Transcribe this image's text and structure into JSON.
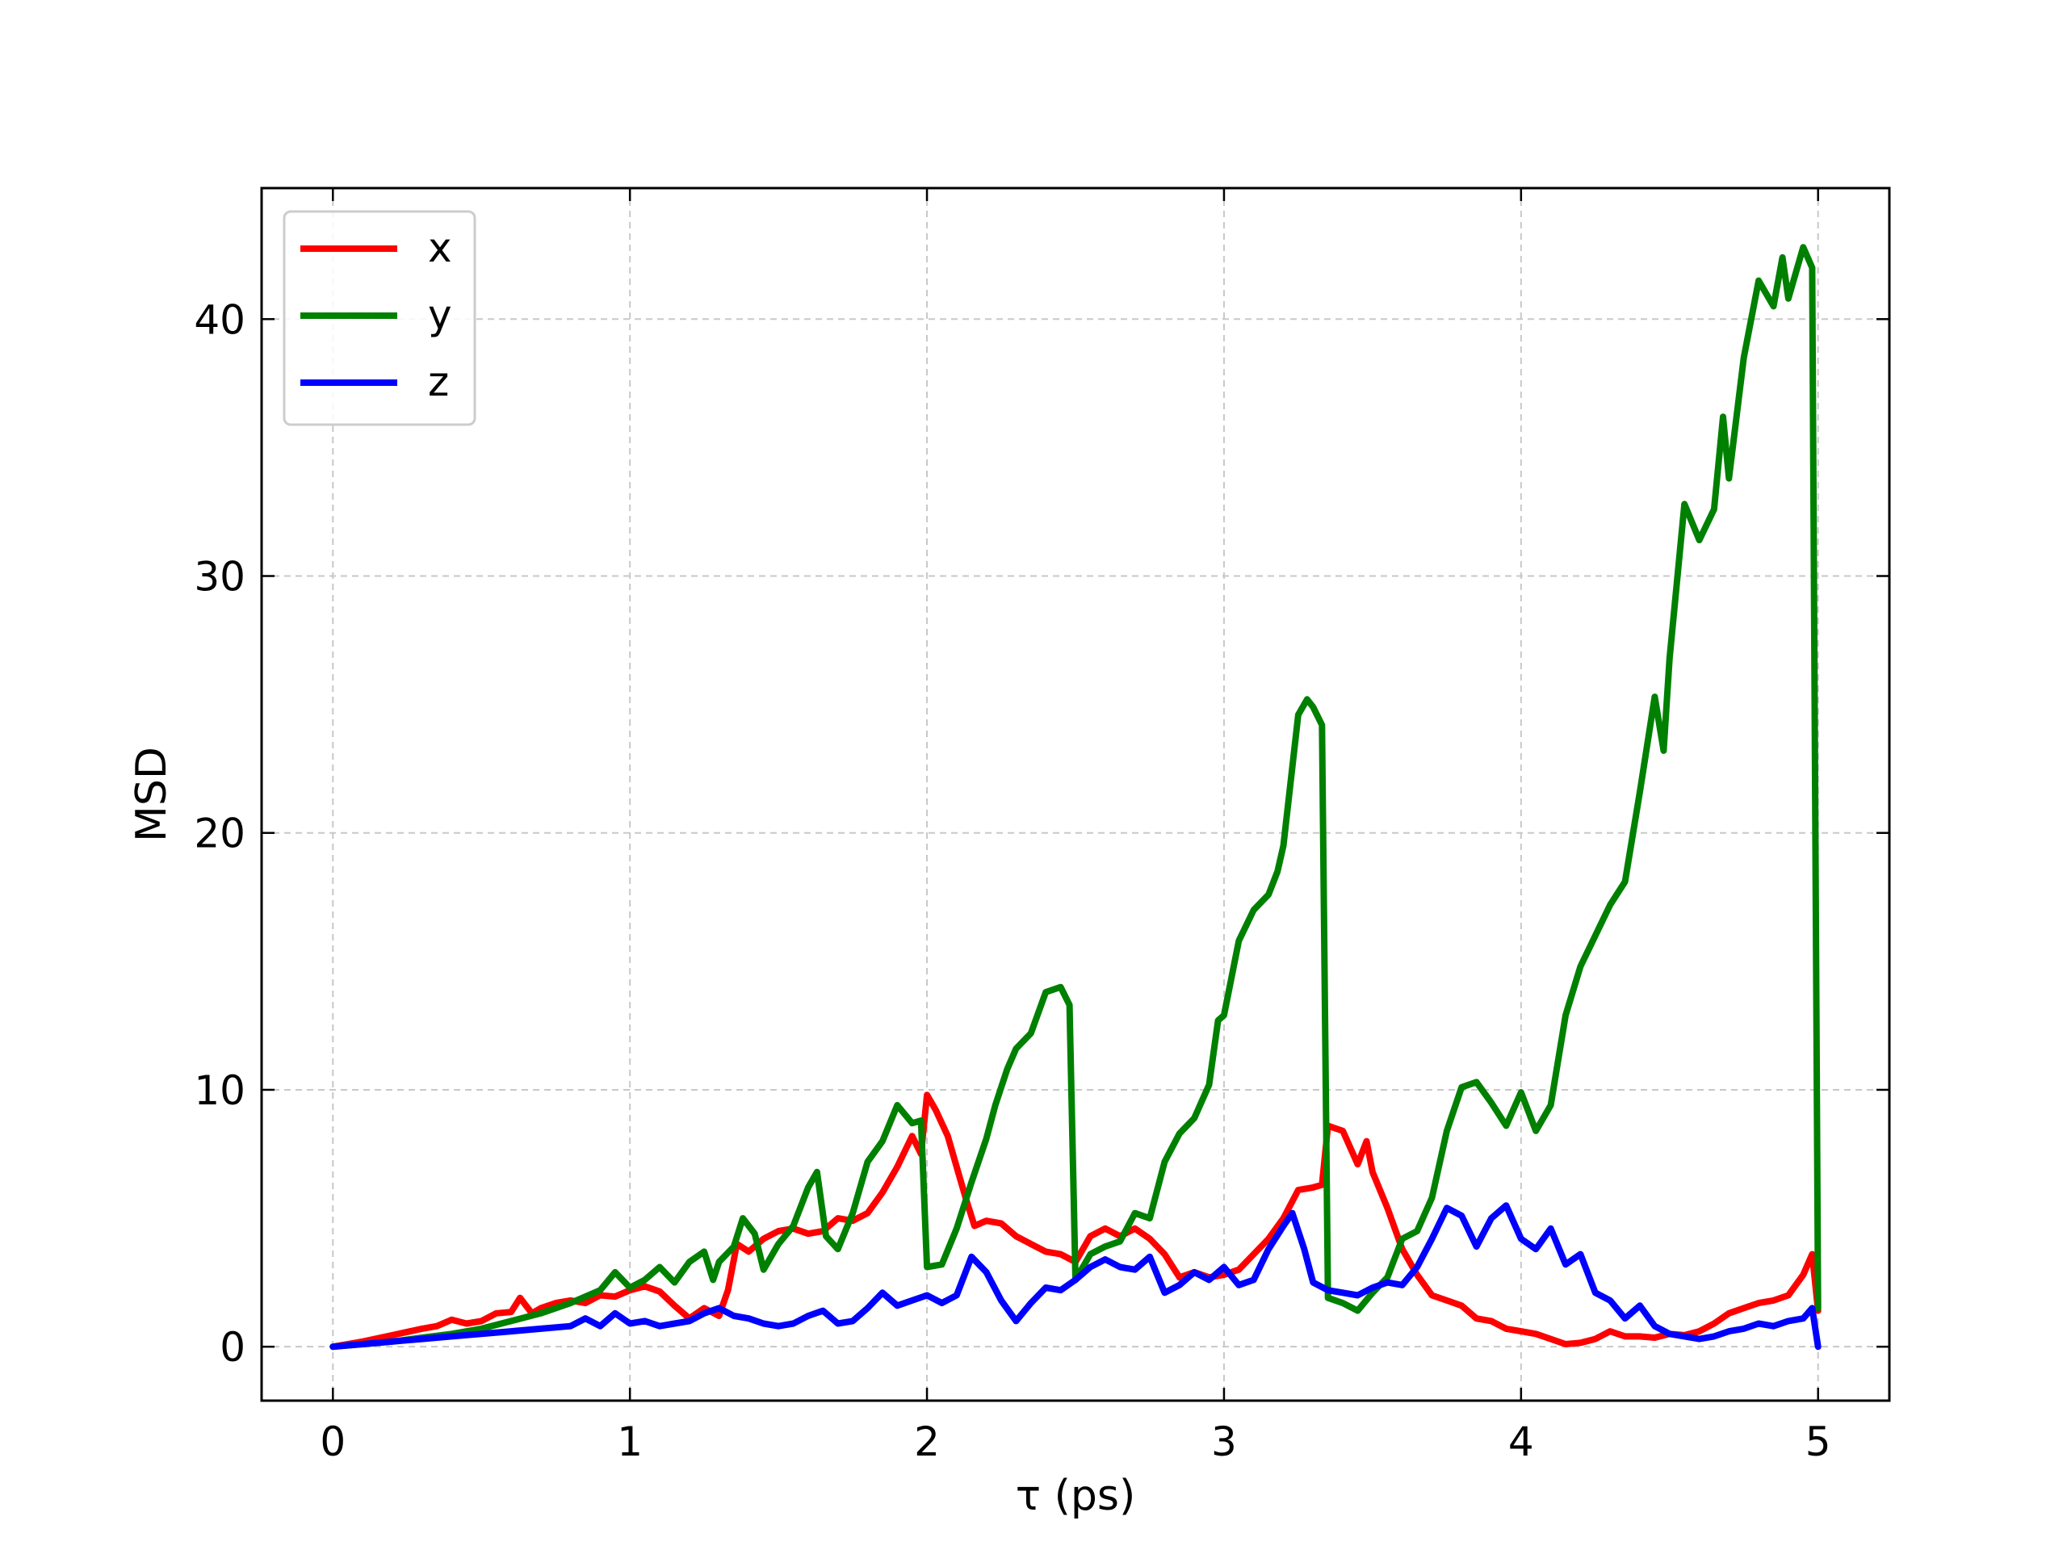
{
  "chart_data": {
    "type": "line",
    "title": "",
    "xlabel": "τ (ps)",
    "ylabel": "MSD",
    "xlim": [
      -0.24,
      5.24
    ],
    "ylim": [
      -2.1,
      45.1
    ],
    "xticks": [
      0,
      1,
      2,
      3,
      4,
      5
    ],
    "yticks": [
      0,
      10,
      20,
      30,
      40
    ],
    "grid": true,
    "legend_position": "top-left",
    "series": [
      {
        "name": "x",
        "color": "#ff0000",
        "points": [
          [
            0,
            0
          ],
          [
            0.1,
            0.2
          ],
          [
            0.2,
            0.45
          ],
          [
            0.3,
            0.7
          ],
          [
            0.35,
            0.8
          ],
          [
            0.4,
            1.05
          ],
          [
            0.45,
            0.9
          ],
          [
            0.5,
            1.0
          ],
          [
            0.55,
            1.3
          ],
          [
            0.6,
            1.35
          ],
          [
            0.63,
            1.9
          ],
          [
            0.67,
            1.3
          ],
          [
            0.7,
            1.5
          ],
          [
            0.75,
            1.7
          ],
          [
            0.8,
            1.8
          ],
          [
            0.85,
            1.7
          ],
          [
            0.9,
            2.0
          ],
          [
            0.95,
            1.95
          ],
          [
            1.0,
            2.2
          ],
          [
            1.05,
            2.35
          ],
          [
            1.1,
            2.15
          ],
          [
            1.15,
            1.6
          ],
          [
            1.2,
            1.1
          ],
          [
            1.25,
            1.5
          ],
          [
            1.3,
            1.2
          ],
          [
            1.33,
            2.2
          ],
          [
            1.36,
            4.0
          ],
          [
            1.4,
            3.7
          ],
          [
            1.45,
            4.2
          ],
          [
            1.5,
            4.5
          ],
          [
            1.55,
            4.6
          ],
          [
            1.6,
            4.4
          ],
          [
            1.65,
            4.5
          ],
          [
            1.7,
            5.0
          ],
          [
            1.75,
            4.9
          ],
          [
            1.8,
            5.2
          ],
          [
            1.85,
            6.0
          ],
          [
            1.9,
            7.0
          ],
          [
            1.95,
            8.2
          ],
          [
            1.98,
            7.5
          ],
          [
            2.0,
            9.8
          ],
          [
            2.03,
            9.2
          ],
          [
            2.07,
            8.2
          ],
          [
            2.1,
            7.0
          ],
          [
            2.13,
            5.8
          ],
          [
            2.16,
            4.7
          ],
          [
            2.2,
            4.9
          ],
          [
            2.25,
            4.8
          ],
          [
            2.3,
            4.3
          ],
          [
            2.35,
            4.0
          ],
          [
            2.4,
            3.7
          ],
          [
            2.45,
            3.6
          ],
          [
            2.5,
            3.3
          ],
          [
            2.55,
            4.3
          ],
          [
            2.6,
            4.6
          ],
          [
            2.65,
            4.3
          ],
          [
            2.7,
            4.6
          ],
          [
            2.75,
            4.2
          ],
          [
            2.8,
            3.6
          ],
          [
            2.85,
            2.7
          ],
          [
            2.9,
            2.9
          ],
          [
            2.95,
            2.7
          ],
          [
            3.0,
            2.8
          ],
          [
            3.05,
            3.0
          ],
          [
            3.1,
            3.6
          ],
          [
            3.15,
            4.2
          ],
          [
            3.2,
            5.0
          ],
          [
            3.25,
            6.1
          ],
          [
            3.3,
            6.2
          ],
          [
            3.33,
            6.3
          ],
          [
            3.35,
            8.6
          ],
          [
            3.4,
            8.4
          ],
          [
            3.45,
            7.1
          ],
          [
            3.48,
            8.0
          ],
          [
            3.5,
            6.8
          ],
          [
            3.55,
            5.4
          ],
          [
            3.6,
            3.8
          ],
          [
            3.65,
            2.8
          ],
          [
            3.7,
            2.0
          ],
          [
            3.75,
            1.8
          ],
          [
            3.8,
            1.6
          ],
          [
            3.85,
            1.1
          ],
          [
            3.9,
            1.0
          ],
          [
            3.95,
            0.7
          ],
          [
            4.0,
            0.6
          ],
          [
            4.05,
            0.5
          ],
          [
            4.1,
            0.3
          ],
          [
            4.15,
            0.1
          ],
          [
            4.2,
            0.15
          ],
          [
            4.25,
            0.3
          ],
          [
            4.3,
            0.6
          ],
          [
            4.35,
            0.4
          ],
          [
            4.4,
            0.4
          ],
          [
            4.45,
            0.35
          ],
          [
            4.5,
            0.5
          ],
          [
            4.55,
            0.45
          ],
          [
            4.6,
            0.6
          ],
          [
            4.65,
            0.9
          ],
          [
            4.7,
            1.3
          ],
          [
            4.75,
            1.5
          ],
          [
            4.8,
            1.7
          ],
          [
            4.85,
            1.8
          ],
          [
            4.9,
            2.0
          ],
          [
            4.95,
            2.8
          ],
          [
            4.98,
            3.6
          ],
          [
            5.0,
            1.4
          ]
        ]
      },
      {
        "name": "y",
        "color": "#008000",
        "points": [
          [
            0,
            0
          ],
          [
            0.1,
            0.1
          ],
          [
            0.2,
            0.2
          ],
          [
            0.3,
            0.35
          ],
          [
            0.4,
            0.5
          ],
          [
            0.5,
            0.7
          ],
          [
            0.6,
            1.0
          ],
          [
            0.7,
            1.3
          ],
          [
            0.8,
            1.7
          ],
          [
            0.9,
            2.2
          ],
          [
            0.95,
            2.9
          ],
          [
            1.0,
            2.3
          ],
          [
            1.05,
            2.6
          ],
          [
            1.1,
            3.1
          ],
          [
            1.15,
            2.5
          ],
          [
            1.2,
            3.3
          ],
          [
            1.25,
            3.7
          ],
          [
            1.28,
            2.6
          ],
          [
            1.3,
            3.3
          ],
          [
            1.35,
            3.9
          ],
          [
            1.38,
            5.0
          ],
          [
            1.42,
            4.4
          ],
          [
            1.45,
            3.0
          ],
          [
            1.5,
            4.0
          ],
          [
            1.55,
            4.7
          ],
          [
            1.6,
            6.2
          ],
          [
            1.63,
            6.8
          ],
          [
            1.66,
            4.3
          ],
          [
            1.7,
            3.8
          ],
          [
            1.75,
            5.2
          ],
          [
            1.8,
            7.2
          ],
          [
            1.85,
            8.0
          ],
          [
            1.9,
            9.4
          ],
          [
            1.95,
            8.7
          ],
          [
            1.98,
            8.8
          ],
          [
            2.0,
            3.1
          ],
          [
            2.05,
            3.2
          ],
          [
            2.1,
            4.6
          ],
          [
            2.15,
            6.4
          ],
          [
            2.2,
            8.1
          ],
          [
            2.23,
            9.4
          ],
          [
            2.27,
            10.8
          ],
          [
            2.3,
            11.6
          ],
          [
            2.35,
            12.2
          ],
          [
            2.4,
            13.8
          ],
          [
            2.45,
            14.0
          ],
          [
            2.48,
            13.3
          ],
          [
            2.5,
            2.6
          ],
          [
            2.55,
            3.6
          ],
          [
            2.6,
            3.9
          ],
          [
            2.65,
            4.1
          ],
          [
            2.7,
            5.2
          ],
          [
            2.75,
            5.0
          ],
          [
            2.8,
            7.2
          ],
          [
            2.85,
            8.3
          ],
          [
            2.9,
            8.9
          ],
          [
            2.95,
            10.2
          ],
          [
            2.98,
            12.7
          ],
          [
            3.0,
            12.9
          ],
          [
            3.05,
            15.8
          ],
          [
            3.1,
            17.0
          ],
          [
            3.15,
            17.6
          ],
          [
            3.18,
            18.5
          ],
          [
            3.2,
            19.5
          ],
          [
            3.25,
            24.6
          ],
          [
            3.28,
            25.2
          ],
          [
            3.3,
            24.9
          ],
          [
            3.33,
            24.2
          ],
          [
            3.35,
            1.9
          ],
          [
            3.4,
            1.7
          ],
          [
            3.45,
            1.4
          ],
          [
            3.5,
            2.1
          ],
          [
            3.55,
            2.7
          ],
          [
            3.6,
            4.2
          ],
          [
            3.65,
            4.5
          ],
          [
            3.7,
            5.8
          ],
          [
            3.75,
            8.4
          ],
          [
            3.8,
            10.1
          ],
          [
            3.85,
            10.3
          ],
          [
            3.9,
            9.5
          ],
          [
            3.95,
            8.6
          ],
          [
            4.0,
            9.9
          ],
          [
            4.05,
            8.4
          ],
          [
            4.1,
            9.4
          ],
          [
            4.15,
            12.9
          ],
          [
            4.2,
            14.8
          ],
          [
            4.25,
            16.0
          ],
          [
            4.3,
            17.2
          ],
          [
            4.35,
            18.1
          ],
          [
            4.4,
            21.6
          ],
          [
            4.45,
            25.3
          ],
          [
            4.48,
            23.2
          ],
          [
            4.5,
            26.8
          ],
          [
            4.55,
            32.8
          ],
          [
            4.6,
            31.4
          ],
          [
            4.65,
            32.6
          ],
          [
            4.68,
            36.2
          ],
          [
            4.7,
            33.8
          ],
          [
            4.75,
            38.5
          ],
          [
            4.8,
            41.5
          ],
          [
            4.85,
            40.5
          ],
          [
            4.88,
            42.4
          ],
          [
            4.9,
            40.8
          ],
          [
            4.95,
            42.8
          ],
          [
            4.98,
            42.0
          ],
          [
            5.0,
            1.5
          ]
        ]
      },
      {
        "name": "z",
        "color": "#0000ff",
        "points": [
          [
            0,
            0
          ],
          [
            0.1,
            0.1
          ],
          [
            0.2,
            0.2
          ],
          [
            0.3,
            0.3
          ],
          [
            0.4,
            0.4
          ],
          [
            0.5,
            0.5
          ],
          [
            0.6,
            0.6
          ],
          [
            0.7,
            0.7
          ],
          [
            0.8,
            0.8
          ],
          [
            0.85,
            1.1
          ],
          [
            0.9,
            0.8
          ],
          [
            0.95,
            1.3
          ],
          [
            1.0,
            0.9
          ],
          [
            1.05,
            1.0
          ],
          [
            1.1,
            0.8
          ],
          [
            1.15,
            0.9
          ],
          [
            1.2,
            1.0
          ],
          [
            1.25,
            1.3
          ],
          [
            1.3,
            1.5
          ],
          [
            1.35,
            1.2
          ],
          [
            1.4,
            1.1
          ],
          [
            1.45,
            0.9
          ],
          [
            1.5,
            0.8
          ],
          [
            1.55,
            0.9
          ],
          [
            1.6,
            1.2
          ],
          [
            1.65,
            1.4
          ],
          [
            1.7,
            0.9
          ],
          [
            1.75,
            1.0
          ],
          [
            1.8,
            1.5
          ],
          [
            1.85,
            2.1
          ],
          [
            1.9,
            1.6
          ],
          [
            1.95,
            1.8
          ],
          [
            2.0,
            2.0
          ],
          [
            2.05,
            1.7
          ],
          [
            2.1,
            2.0
          ],
          [
            2.15,
            3.5
          ],
          [
            2.2,
            2.9
          ],
          [
            2.25,
            1.8
          ],
          [
            2.3,
            1.0
          ],
          [
            2.35,
            1.7
          ],
          [
            2.4,
            2.3
          ],
          [
            2.45,
            2.2
          ],
          [
            2.5,
            2.6
          ],
          [
            2.55,
            3.1
          ],
          [
            2.6,
            3.4
          ],
          [
            2.65,
            3.1
          ],
          [
            2.7,
            3.0
          ],
          [
            2.75,
            3.5
          ],
          [
            2.8,
            2.1
          ],
          [
            2.85,
            2.4
          ],
          [
            2.9,
            2.9
          ],
          [
            2.95,
            2.6
          ],
          [
            3.0,
            3.1
          ],
          [
            3.05,
            2.4
          ],
          [
            3.1,
            2.6
          ],
          [
            3.15,
            3.8
          ],
          [
            3.2,
            4.7
          ],
          [
            3.23,
            5.2
          ],
          [
            3.27,
            3.8
          ],
          [
            3.3,
            2.5
          ],
          [
            3.35,
            2.2
          ],
          [
            3.4,
            2.1
          ],
          [
            3.45,
            2.0
          ],
          [
            3.5,
            2.3
          ],
          [
            3.55,
            2.5
          ],
          [
            3.6,
            2.4
          ],
          [
            3.65,
            3.1
          ],
          [
            3.7,
            4.2
          ],
          [
            3.75,
            5.4
          ],
          [
            3.8,
            5.1
          ],
          [
            3.85,
            3.9
          ],
          [
            3.9,
            5.0
          ],
          [
            3.95,
            5.5
          ],
          [
            4.0,
            4.2
          ],
          [
            4.05,
            3.8
          ],
          [
            4.1,
            4.6
          ],
          [
            4.15,
            3.2
          ],
          [
            4.2,
            3.6
          ],
          [
            4.25,
            2.1
          ],
          [
            4.3,
            1.8
          ],
          [
            4.35,
            1.1
          ],
          [
            4.4,
            1.6
          ],
          [
            4.45,
            0.8
          ],
          [
            4.5,
            0.5
          ],
          [
            4.55,
            0.4
          ],
          [
            4.6,
            0.3
          ],
          [
            4.65,
            0.4
          ],
          [
            4.7,
            0.6
          ],
          [
            4.75,
            0.7
          ],
          [
            4.8,
            0.9
          ],
          [
            4.85,
            0.8
          ],
          [
            4.9,
            1.0
          ],
          [
            4.95,
            1.1
          ],
          [
            4.98,
            1.5
          ],
          [
            5.0,
            0.0
          ]
        ]
      }
    ]
  }
}
